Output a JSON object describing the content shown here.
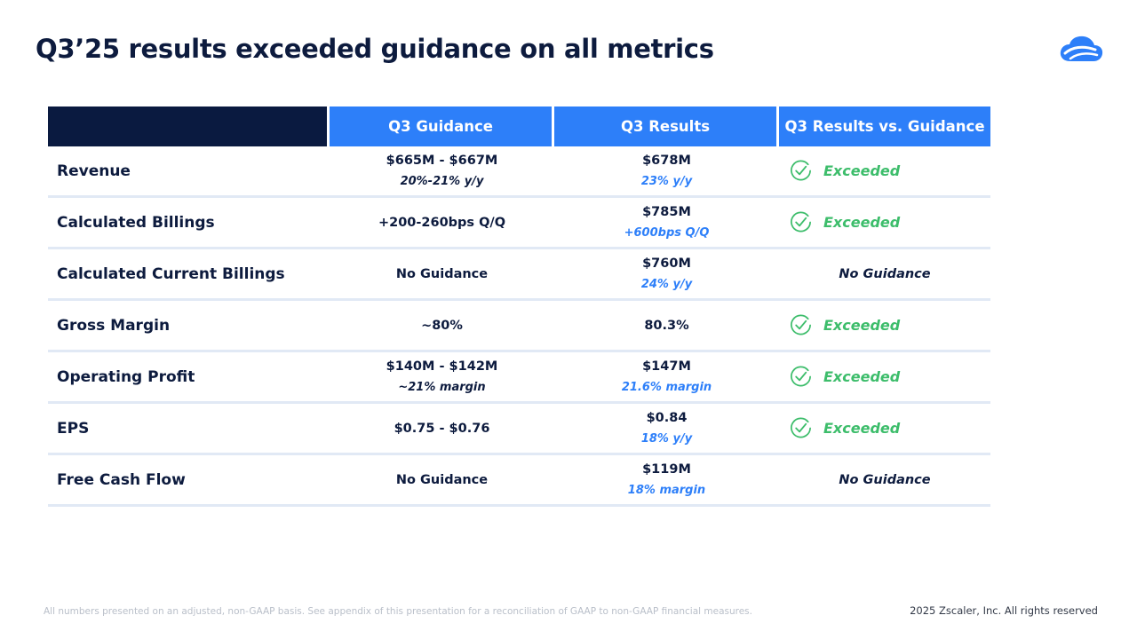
{
  "title": "Q3’25 results exceeded guidance on all metrics",
  "logo_icon": "zscaler-cloud-logo",
  "colors": {
    "navy": "#0a1a40",
    "header_blue": "#2d7ff9",
    "exceeded_green": "#3dbd6b",
    "divider": "#e1e9f5"
  },
  "table": {
    "headers": [
      "",
      "Q3 Guidance",
      "Q3 Results",
      "Q3 Results vs. Guidance"
    ],
    "rows": [
      {
        "metric": "Revenue",
        "guidance_main": "$665M - $667M",
        "guidance_sub": "20%-21% y/y",
        "result_main": "$678M",
        "result_sub": "23% y/y",
        "status": "Exceeded"
      },
      {
        "metric": "Calculated Billings",
        "guidance_main": "+200-260bps Q/Q",
        "guidance_sub": "",
        "result_main": "$785M",
        "result_sub": "+600bps Q/Q",
        "status": "Exceeded"
      },
      {
        "metric": "Calculated Current Billings",
        "guidance_main": "No Guidance",
        "guidance_sub": "",
        "result_main": "$760M",
        "result_sub": "24% y/y",
        "status": "No Guidance"
      },
      {
        "metric": "Gross Margin",
        "guidance_main": "~80%",
        "guidance_sub": "",
        "result_main": "80.3%",
        "result_sub": "",
        "status": "Exceeded"
      },
      {
        "metric": "Operating Profit",
        "guidance_main": "$140M - $142M",
        "guidance_sub": "~21% margin",
        "result_main": "$147M",
        "result_sub": "21.6% margin",
        "status": "Exceeded"
      },
      {
        "metric": "EPS",
        "guidance_main": "$0.75 - $0.76",
        "guidance_sub": "",
        "result_main": "$0.84",
        "result_sub": "18% y/y",
        "status": "Exceeded"
      },
      {
        "metric": "Free Cash Flow",
        "guidance_main": "No Guidance",
        "guidance_sub": "",
        "result_main": "$119M",
        "result_sub": "18% margin",
        "status": "No Guidance"
      }
    ]
  },
  "footnote": "All numbers presented on an adjusted, non-GAAP basis. See appendix of this presentation for a reconciliation of GAAP to non-GAAP financial measures.",
  "copyright": "2025 Zscaler, Inc. All rights reserved"
}
